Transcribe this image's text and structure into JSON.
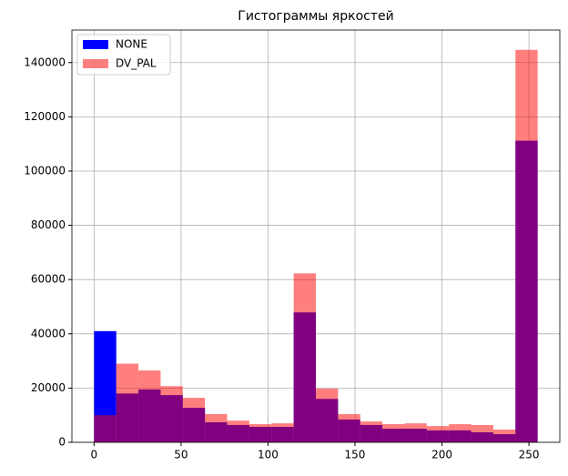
{
  "chart_data": {
    "type": "histogram",
    "title": "Гистограммы яркостей",
    "bins": [
      0,
      12.75,
      25.5,
      38.25,
      51,
      63.75,
      76.5,
      89.25,
      102,
      114.75,
      127.5,
      140.25,
      153,
      165.75,
      178.5,
      191.25,
      204,
      216.75,
      229.5,
      242.25,
      255
    ],
    "series": [
      {
        "name": "NONE",
        "color": "#0000ff",
        "opacity": 1,
        "values": [
          41000,
          18000,
          19500,
          17400,
          12700,
          7400,
          6400,
          5700,
          5700,
          47900,
          16000,
          8400,
          6400,
          5000,
          5000,
          4400,
          4400,
          3700,
          3000,
          111200
        ]
      },
      {
        "name": "DV_PAL",
        "color": "#ff0000",
        "opacity": 0.5,
        "values": [
          10000,
          29000,
          26500,
          20700,
          16400,
          10400,
          8000,
          6700,
          7000,
          62300,
          19800,
          10400,
          7700,
          6700,
          7000,
          6000,
          6700,
          6400,
          4700,
          144700
        ]
      }
    ],
    "xlim": [
      -12.75,
      267.75
    ],
    "ylim": [
      0,
      152000
    ],
    "xticks": [
      0,
      50,
      100,
      150,
      200,
      250
    ],
    "yticks": [
      0,
      20000,
      40000,
      60000,
      80000,
      100000,
      120000,
      140000
    ],
    "grid": true,
    "legend": "upper left"
  }
}
